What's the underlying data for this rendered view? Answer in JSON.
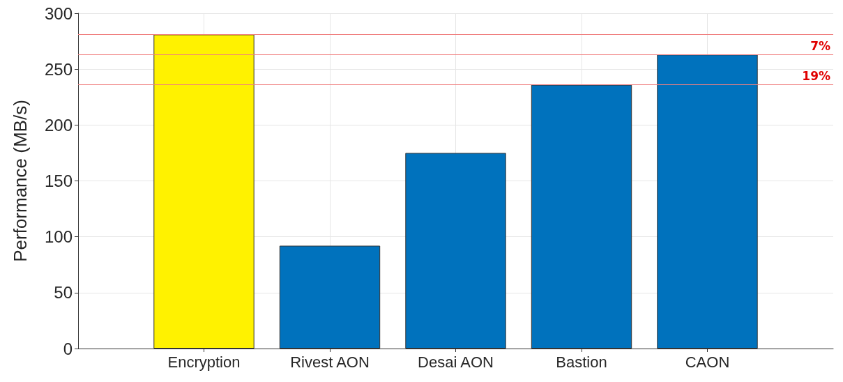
{
  "chart_data": {
    "type": "bar",
    "ylabel": "Performance (MB/s)",
    "categories": [
      "Encryption",
      "Rivest AON",
      "Desai AON",
      "Bastion",
      "CAON"
    ],
    "values": [
      281,
      92,
      175,
      236,
      263
    ],
    "colors": [
      "#fff200",
      "#0072bd",
      "#0072bd",
      "#0072bd",
      "#0072bd"
    ],
    "ylim": [
      0,
      300
    ],
    "yticks": [
      0,
      50,
      100,
      150,
      200,
      250,
      300
    ],
    "grid": true,
    "ref_lines": [
      {
        "axis": "y",
        "value": 281,
        "color": "#f08080"
      },
      {
        "axis": "y",
        "value": 263,
        "color": "#f08080"
      },
      {
        "axis": "y",
        "value": 236,
        "color": "#f08080"
      }
    ],
    "annotations": [
      {
        "text": "7%",
        "y": 263
      },
      {
        "text": "19%",
        "y": 236
      }
    ]
  }
}
